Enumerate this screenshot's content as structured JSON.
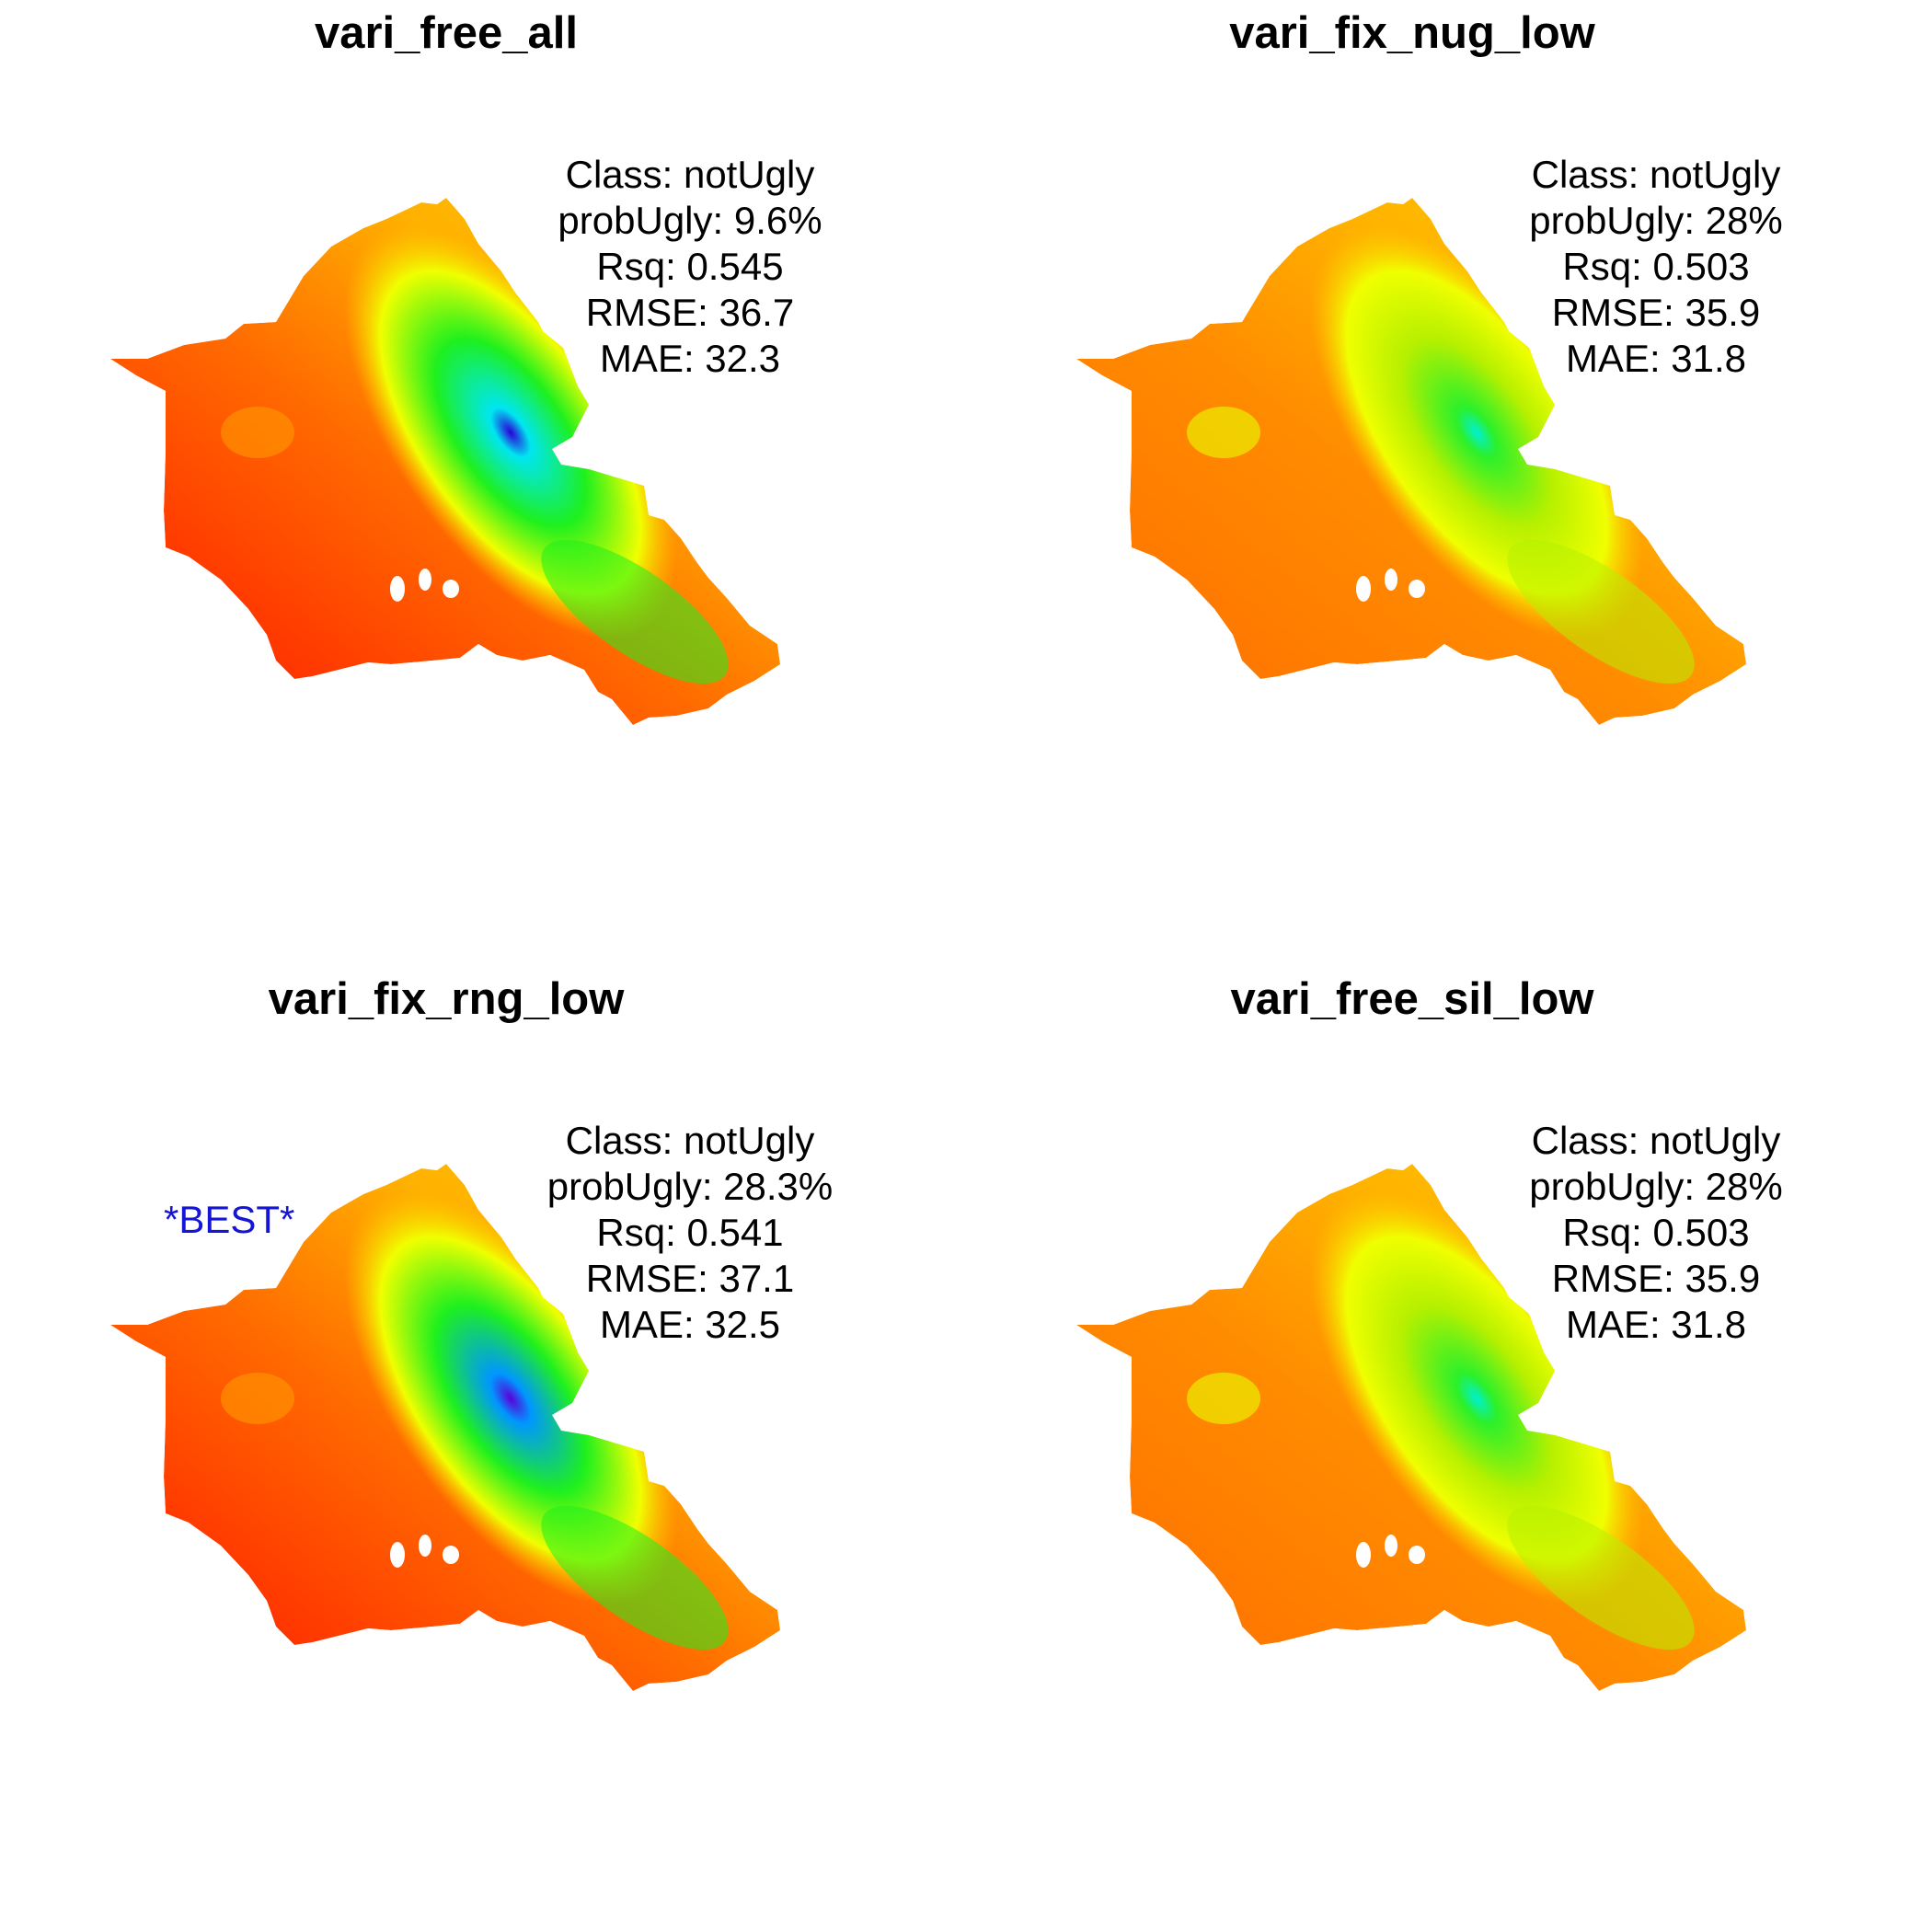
{
  "panels": [
    {
      "title": "vari_free_all",
      "stats": [
        "Class: notUgly",
        "probUgly: 9.6%",
        "Rsq: 0.545",
        "RMSE: 36.7",
        "MAE: 32.3"
      ],
      "palette": "red-yellow-green-blue",
      "hotspot_colors": [
        "#2b00d8",
        "#00e6f0",
        "#1ef01e"
      ]
    },
    {
      "title": "vari_fix_nug_low",
      "stats": [
        "Class: notUgly",
        "probUgly: 28%",
        "Rsq: 0.503",
        "RMSE: 35.9",
        "MAE: 31.8"
      ],
      "palette": "orange-yellow-green-cyan",
      "hotspot_colors": [
        "#00f0d0",
        "#2cf02a",
        "#b6f000"
      ]
    },
    {
      "title": "vari_fix_rng_low",
      "stats": [
        "Class: notUgly",
        "probUgly: 28.3%",
        "Rsq: 0.541",
        "RMSE: 37.1",
        "MAE: 32.5"
      ],
      "best_label": "*BEST*",
      "palette": "red-yellow-green-blue",
      "hotspot_colors": [
        "#5a00d8",
        "#0096ff",
        "#1ef01e"
      ]
    },
    {
      "title": "vari_free_sil_low",
      "stats": [
        "Class: notUgly",
        "probUgly: 28%",
        "Rsq: 0.503",
        "RMSE: 35.9",
        "MAE: 31.8"
      ],
      "palette": "orange-yellow-green-cyan",
      "hotspot_colors": [
        "#00f0d0",
        "#2cf02a",
        "#b6f000"
      ]
    }
  ]
}
